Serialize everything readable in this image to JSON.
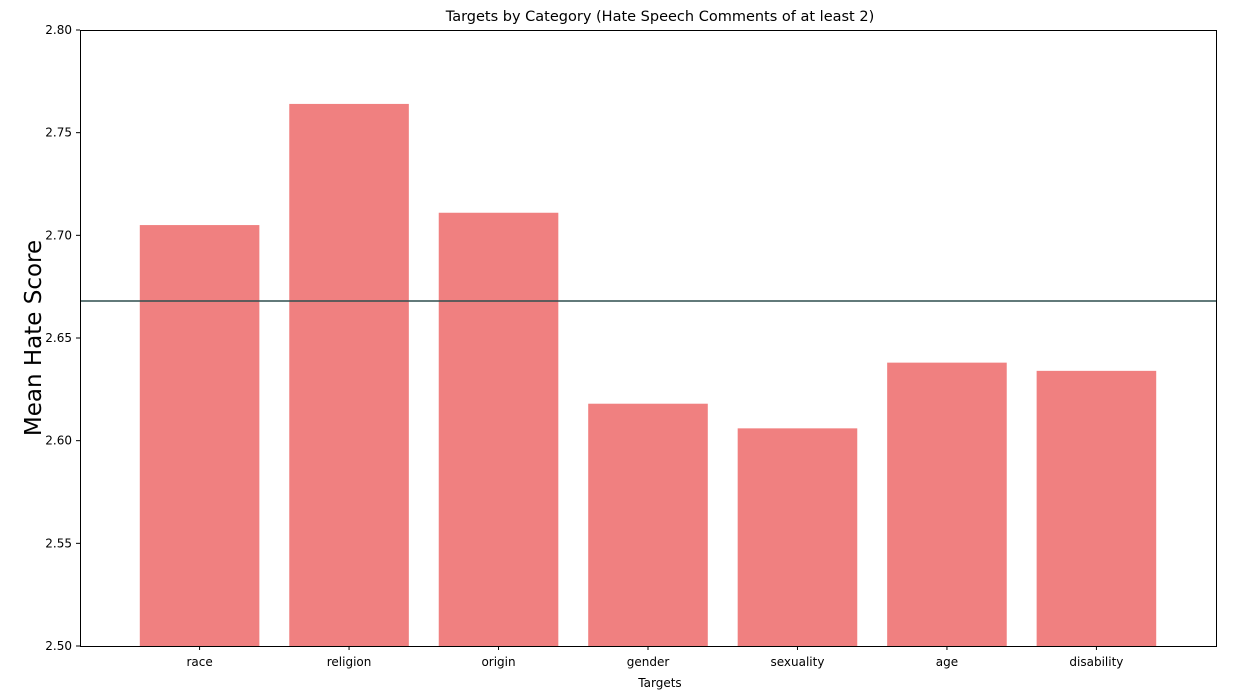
{
  "chart_data": {
    "type": "bar",
    "title": "Targets by Category (Hate Speech Comments of at least 2)",
    "xlabel": "Targets",
    "ylabel": "Mean Hate Score",
    "categories": [
      "race",
      "religion",
      "origin",
      "gender",
      "sexuality",
      "age",
      "disability"
    ],
    "values": [
      2.705,
      2.764,
      2.711,
      2.618,
      2.606,
      2.638,
      2.634
    ],
    "ylim": [
      2.5,
      2.8
    ],
    "yticks": [
      "2.50",
      "2.55",
      "2.60",
      "2.65",
      "2.70",
      "2.75",
      "2.80"
    ],
    "reference_line": 2.668,
    "grid": false,
    "colors": {
      "bar": "#f08080",
      "reference_line": "#2f4f4f"
    }
  }
}
